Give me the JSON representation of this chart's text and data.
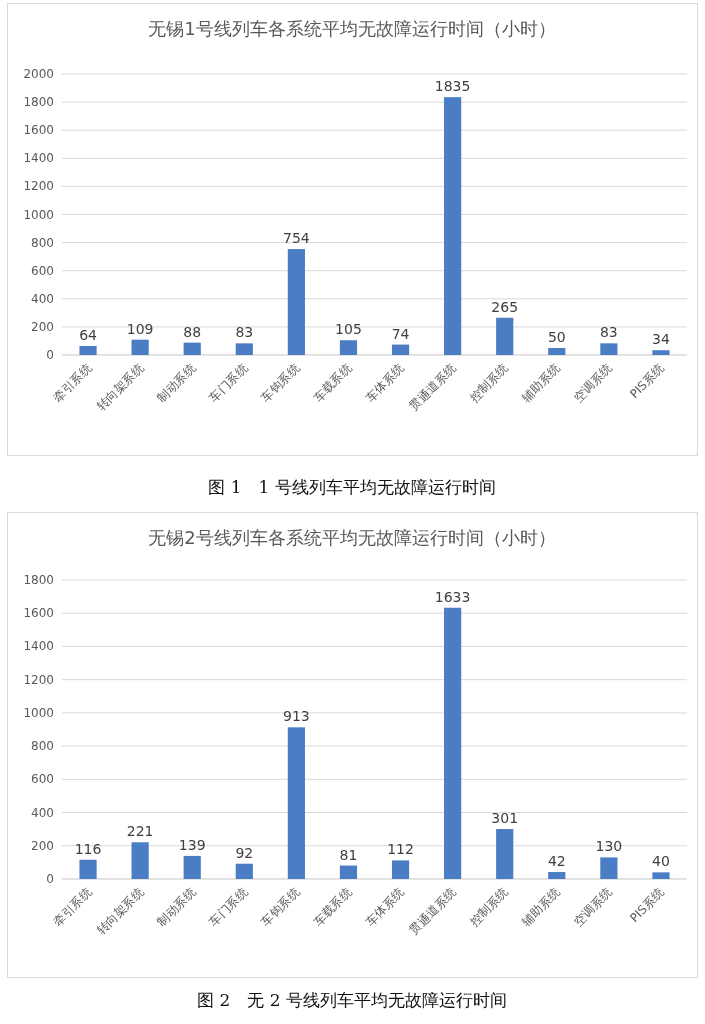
{
  "chart_data": [
    {
      "type": "bar",
      "title": "无锡1号线列车各系统平均无故障运行时间（小时）",
      "categories": [
        "牵引系统",
        "转向架系统",
        "制动系统",
        "车门系统",
        "车钩系统",
        "车载系统",
        "车体系统",
        "贯通道系统",
        "控制系统",
        "辅助系统",
        "空调系统",
        "PIS系统"
      ],
      "values": [
        64,
        109,
        88,
        83,
        754,
        105,
        74,
        1835,
        265,
        50,
        83,
        34
      ],
      "color": "#4a7dc4",
      "ylim": [
        0,
        2000
      ],
      "yticks": [
        0,
        200,
        400,
        600,
        800,
        1000,
        1200,
        1400,
        1600,
        1800,
        2000
      ],
      "grid": "y",
      "data_labels": true,
      "annotations": [
        "图 1　1 号线列车平均无故障运行时间"
      ]
    },
    {
      "type": "bar",
      "title": "无锡2号线列车各系统平均无故障运行时间（小时）",
      "categories": [
        "牵引系统",
        "转向架系统",
        "制动系统",
        "车门系统",
        "车钩系统",
        "车载系统",
        "车体系统",
        "贯通道系统",
        "控制系统",
        "辅助系统",
        "空调系统",
        "PIS系统"
      ],
      "values": [
        116,
        221,
        139,
        92,
        913,
        81,
        112,
        1633,
        301,
        42,
        130,
        40
      ],
      "color": "#4a7dc4",
      "ylim": [
        0,
        1800
      ],
      "yticks": [
        0,
        200,
        400,
        600,
        800,
        1000,
        1200,
        1400,
        1600,
        1800
      ],
      "grid": "y",
      "data_labels": true,
      "annotations": [
        "图 2　无 2 号线列车平均无故障运行时间"
      ]
    }
  ]
}
